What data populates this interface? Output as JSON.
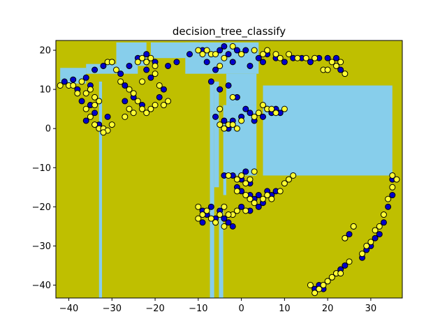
{
  "chart_data": {
    "type": "scatter",
    "title": "decision_tree_classify",
    "xlabel": "",
    "ylabel": "",
    "xlim": [
      -43,
      37.3
    ],
    "ylim": [
      -43.3,
      22.5
    ],
    "xticks": [
      -40,
      -30,
      -20,
      -10,
      0,
      10,
      20,
      30
    ],
    "yticks": [
      -40,
      -30,
      -20,
      -10,
      0,
      10,
      20
    ],
    "grid": false,
    "legend": "none",
    "colors": {
      "background_region": "#bfbf00",
      "other_region": "#87ceeb",
      "class_a_point": "#0000cc",
      "class_b_point": "#ffff33",
      "point_edge": "#000000"
    },
    "regions": [
      {
        "x0": -42,
        "x1": -36,
        "y0": 11.5,
        "y1": 15.5
      },
      {
        "x0": -36,
        "x1": -24,
        "y0": 14,
        "y1": 16.5
      },
      {
        "x0": -33,
        "x1": -32.3,
        "y0": -43.3,
        "y1": 12
      },
      {
        "x0": -29,
        "x1": -22,
        "y0": 16,
        "y1": 22
      },
      {
        "x0": -21,
        "x1": -10,
        "y0": 18,
        "y1": 22
      },
      {
        "x0": -13,
        "x1": 4,
        "y0": 14,
        "y1": 22
      },
      {
        "x0": -7.3,
        "x1": -6.3,
        "y0": -43.3,
        "y1": 12
      },
      {
        "x0": -6.3,
        "x1": -5.2,
        "y0": -15,
        "y1": 12
      },
      {
        "x0": -5.2,
        "x1": -4.2,
        "y0": -43.3,
        "y1": -20
      },
      {
        "x0": -4.2,
        "x1": -3.5,
        "y0": -17,
        "y1": 6
      },
      {
        "x0": -3.5,
        "x1": 3.5,
        "y0": -12,
        "y1": 6
      },
      {
        "x0": -3.5,
        "x1": 3.5,
        "y0": 6,
        "y1": 14
      },
      {
        "x0": 5,
        "x1": 35,
        "y0": -12,
        "y1": 11
      }
    ],
    "series": [
      {
        "class": "A",
        "points": [
          [
            -41,
            12
          ],
          [
            -39,
            12.5
          ],
          [
            -38,
            10
          ],
          [
            -36,
            13
          ],
          [
            -35,
            11
          ],
          [
            -37,
            7
          ],
          [
            -35,
            6
          ],
          [
            -36,
            2
          ],
          [
            -34,
            4
          ],
          [
            -33,
            1
          ],
          [
            -31,
            3
          ],
          [
            -34,
            15
          ],
          [
            -32,
            16
          ],
          [
            -30,
            17
          ],
          [
            -28,
            14
          ],
          [
            -27,
            11
          ],
          [
            -25,
            8
          ],
          [
            -23,
            6
          ],
          [
            -26,
            16
          ],
          [
            -24,
            18
          ],
          [
            -22,
            19
          ],
          [
            -20,
            17
          ],
          [
            -17,
            16
          ],
          [
            -15,
            17
          ],
          [
            -12,
            19
          ],
          [
            -9,
            20
          ],
          [
            -8,
            17
          ],
          [
            -6,
            15
          ],
          [
            -5,
            20
          ],
          [
            -4,
            21
          ],
          [
            -3,
            19
          ],
          [
            -2,
            17
          ],
          [
            -1,
            20
          ],
          [
            1,
            20
          ],
          [
            2,
            16
          ],
          [
            4,
            18
          ],
          [
            5,
            17
          ],
          [
            6,
            19
          ],
          [
            8,
            18
          ],
          [
            10,
            17
          ],
          [
            12,
            18
          ],
          [
            14,
            18
          ],
          [
            16,
            17
          ],
          [
            18,
            18
          ],
          [
            20,
            18
          ],
          [
            22,
            18
          ],
          [
            23,
            15
          ],
          [
            -7,
            12
          ],
          [
            -5,
            10
          ],
          [
            -3,
            11
          ],
          [
            -1,
            8
          ],
          [
            -6,
            3
          ],
          [
            -4,
            2
          ],
          [
            -3,
            0
          ],
          [
            -2,
            2
          ],
          [
            0,
            3
          ],
          [
            1,
            5
          ],
          [
            2,
            4
          ],
          [
            3,
            2
          ],
          [
            5,
            3
          ],
          [
            6,
            5
          ],
          [
            7,
            4
          ],
          [
            8,
            5
          ],
          [
            9,
            4
          ],
          [
            -4,
            -12
          ],
          [
            -2,
            -12
          ],
          [
            0,
            -13
          ],
          [
            1,
            -11
          ],
          [
            2,
            -14
          ],
          [
            0,
            -16
          ],
          [
            -1,
            -15
          ],
          [
            2,
            -17
          ],
          [
            3,
            -18
          ],
          [
            4,
            -17
          ],
          [
            6,
            -16
          ],
          [
            7,
            -17
          ],
          [
            8,
            -16
          ],
          [
            5,
            -19
          ],
          [
            4,
            -20
          ],
          [
            2,
            -21
          ],
          [
            0,
            -20
          ],
          [
            -9,
            -21
          ],
          [
            -8,
            -22
          ],
          [
            -7,
            -20
          ],
          [
            -6,
            -23
          ],
          [
            -5,
            -21
          ],
          [
            -4,
            -23
          ],
          [
            -3,
            -24
          ],
          [
            -2,
            -25
          ],
          [
            -9,
            -24
          ],
          [
            24,
            -28
          ],
          [
            25,
            -27
          ],
          [
            26,
            -25
          ],
          [
            28,
            -33
          ],
          [
            29,
            -31
          ],
          [
            30,
            -30
          ],
          [
            31,
            -28
          ],
          [
            32,
            -27
          ],
          [
            33,
            -24
          ],
          [
            34,
            -20
          ],
          [
            35,
            -17
          ],
          [
            35,
            -13
          ],
          [
            20,
            -39
          ],
          [
            21,
            -38
          ],
          [
            22,
            -37
          ],
          [
            23,
            -36
          ],
          [
            24,
            -35
          ],
          [
            18,
            -40
          ],
          [
            19,
            -41
          ],
          [
            17,
            -41
          ],
          [
            -22,
            15
          ],
          [
            -21,
            13
          ],
          [
            -18,
            10
          ],
          [
            -19,
            8
          ],
          [
            -27,
            7
          ]
        ]
      },
      {
        "class": "B",
        "points": [
          [
            -42,
            11
          ],
          [
            -40,
            11
          ],
          [
            -39,
            11
          ],
          [
            -38,
            9
          ],
          [
            -37,
            12
          ],
          [
            -36,
            9
          ],
          [
            -35,
            10
          ],
          [
            -34,
            8
          ],
          [
            -36,
            5
          ],
          [
            -35,
            3
          ],
          [
            -34,
            1
          ],
          [
            -33,
            0
          ],
          [
            -32,
            0
          ],
          [
            -31,
            -0.5
          ],
          [
            -32,
            -1
          ],
          [
            -30,
            1
          ],
          [
            -34,
            6
          ],
          [
            -33,
            7
          ],
          [
            -31,
            17
          ],
          [
            -30,
            17
          ],
          [
            -29,
            15
          ],
          [
            -28,
            12
          ],
          [
            -26,
            10
          ],
          [
            -25,
            9
          ],
          [
            -24,
            7
          ],
          [
            -23,
            5
          ],
          [
            -22,
            4
          ],
          [
            -21,
            5
          ],
          [
            -20,
            6
          ],
          [
            -26,
            5
          ],
          [
            -27,
            3
          ],
          [
            -25,
            4
          ],
          [
            -24,
            17
          ],
          [
            -23,
            18
          ],
          [
            -22,
            17
          ],
          [
            -21,
            18
          ],
          [
            -20,
            16
          ],
          [
            -23,
            12
          ],
          [
            -10,
            20
          ],
          [
            -9,
            19
          ],
          [
            -8,
            20
          ],
          [
            -7,
            19
          ],
          [
            -6,
            19
          ],
          [
            -5,
            16
          ],
          [
            -4,
            18
          ],
          [
            -2,
            21
          ],
          [
            0,
            19
          ],
          [
            3,
            20
          ],
          [
            5,
            19
          ],
          [
            6,
            20
          ],
          [
            8,
            19
          ],
          [
            9,
            18
          ],
          [
            11,
            19
          ],
          [
            13,
            18
          ],
          [
            15,
            18
          ],
          [
            17,
            18
          ],
          [
            19,
            15
          ],
          [
            20,
            15
          ],
          [
            21,
            17
          ],
          [
            22,
            16
          ],
          [
            23,
            17
          ],
          [
            24,
            14
          ],
          [
            -2,
            8
          ],
          [
            -5,
            5
          ],
          [
            -5,
            1
          ],
          [
            -4,
            0
          ],
          [
            -3,
            1
          ],
          [
            -2,
            1
          ],
          [
            -1,
            0
          ],
          [
            0,
            2
          ],
          [
            3,
            3
          ],
          [
            4,
            4
          ],
          [
            5,
            6
          ],
          [
            6,
            5
          ],
          [
            7,
            5
          ],
          [
            8,
            4
          ],
          [
            10,
            5
          ],
          [
            -3,
            -12
          ],
          [
            -1,
            -13
          ],
          [
            0,
            -12
          ],
          [
            1,
            -14
          ],
          [
            2,
            -13
          ],
          [
            3,
            -11
          ],
          [
            -1,
            -16
          ],
          [
            1,
            -17
          ],
          [
            2,
            -18
          ],
          [
            3,
            -19
          ],
          [
            5,
            -18
          ],
          [
            6,
            -17
          ],
          [
            7,
            -18
          ],
          [
            9,
            -16
          ],
          [
            10,
            -14
          ],
          [
            11,
            -13
          ],
          [
            12,
            -12
          ],
          [
            1,
            -21
          ],
          [
            -1,
            -21
          ],
          [
            -2,
            -22
          ],
          [
            -10,
            -20
          ],
          [
            -9,
            -22
          ],
          [
            -8,
            -21
          ],
          [
            -7,
            -23
          ],
          [
            -6,
            -24
          ],
          [
            -5,
            -22
          ],
          [
            -4,
            -20
          ],
          [
            -3,
            -22
          ],
          [
            -4,
            -25
          ],
          [
            -10,
            -23
          ],
          [
            24,
            -28
          ],
          [
            26,
            -25
          ],
          [
            28,
            -32
          ],
          [
            29,
            -30
          ],
          [
            30,
            -29
          ],
          [
            31,
            -26
          ],
          [
            32,
            -25
          ],
          [
            33,
            -22
          ],
          [
            34,
            -18
          ],
          [
            35,
            -15
          ],
          [
            36,
            -13
          ],
          [
            35,
            -12
          ],
          [
            21,
            -38
          ],
          [
            22,
            -37
          ],
          [
            23,
            -37
          ],
          [
            25,
            -34
          ],
          [
            19,
            -40
          ],
          [
            17,
            -42
          ],
          [
            18,
            -41
          ],
          [
            16,
            -40
          ],
          [
            20,
            -39
          ],
          [
            -22,
            17
          ],
          [
            -20,
            14
          ],
          [
            -19,
            11
          ],
          [
            -18,
            6
          ],
          [
            -17,
            7
          ]
        ]
      }
    ]
  }
}
